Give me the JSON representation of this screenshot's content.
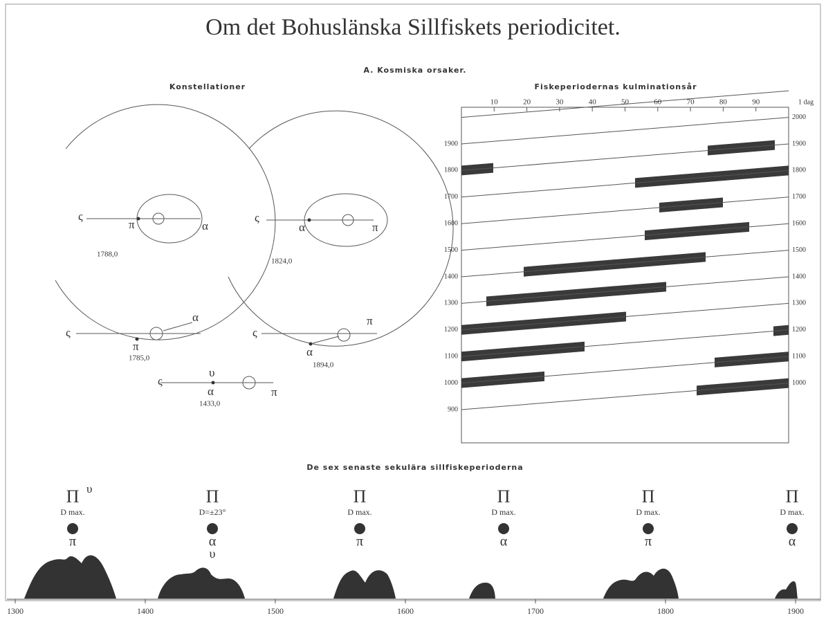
{
  "header": {
    "title": "Om det Bohuslänska Sillfiskets periodicitet.",
    "subtitle": "A. Kosmiska orsaker."
  },
  "constellations": {
    "title": "Konstellationer",
    "diagrams": [
      {
        "year": "1788,0",
        "symbols": [
          "ς",
          "π",
          "α"
        ]
      },
      {
        "year": "1824,0",
        "symbols": [
          "ς",
          "α",
          "π"
        ]
      },
      {
        "year": "1785,0",
        "symbols": [
          "ς",
          "π",
          "α"
        ]
      },
      {
        "year": "1894,0",
        "symbols": [
          "ς",
          "α",
          "π"
        ]
      },
      {
        "year": "1433,0",
        "symbols": [
          "ς",
          "υ",
          "α",
          "π"
        ]
      }
    ]
  },
  "culmination": {
    "title": "Fiskeperiodernas kulminationsår",
    "top_ticks": [
      "10",
      "20",
      "30",
      "40",
      "50",
      "60",
      "70",
      "80",
      "90"
    ],
    "top_unit": "1 dag",
    "left_ticks": [
      "1900",
      "1800",
      "1700",
      "1600",
      "1500",
      "1400",
      "1300",
      "1200",
      "1100",
      "1000",
      "900"
    ],
    "right_ticks": [
      "2000",
      "1900",
      "1800",
      "1700",
      "1600",
      "1500",
      "1400",
      "1300",
      "1200",
      "1100",
      "1000"
    ]
  },
  "periods": {
    "title": "De sex senaste sekulära sillfiskeperioderna",
    "items": [
      {
        "symbol": "Π",
        "sup": "υ",
        "label": "D max.",
        "body": "π"
      },
      {
        "symbol": "Π",
        "label": "D=±23°",
        "body": "α",
        "extra": "υ"
      },
      {
        "symbol": "Π",
        "label": "D max.",
        "body": "π"
      },
      {
        "symbol": "Π",
        "label": "D max.",
        "body": "α"
      },
      {
        "symbol": "Π",
        "label": "D max.",
        "body": "π"
      },
      {
        "symbol": "Π",
        "label": "D max.",
        "body": "α"
      }
    ],
    "axis": [
      "1300",
      "1400",
      "1500",
      "1600",
      "1700",
      "1800",
      "1900"
    ]
  }
}
